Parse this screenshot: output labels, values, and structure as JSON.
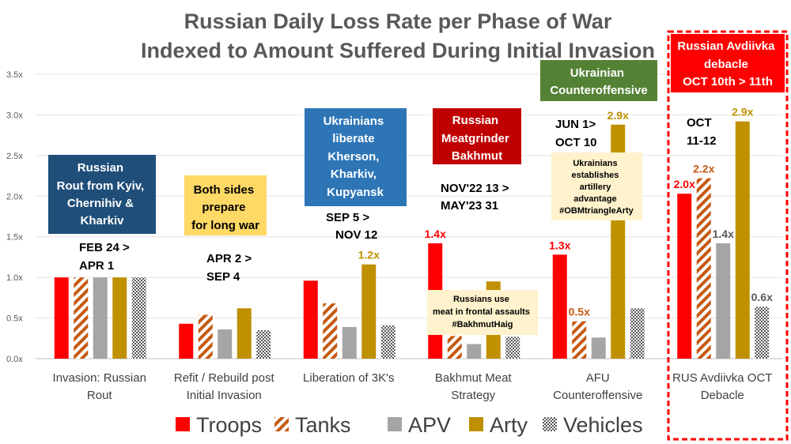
{
  "chart_data": {
    "type": "bar",
    "title": "Russian Daily Loss Rate per Phase of War",
    "subtitle": "Indexed to Amount Suffered During Initial Invasion",
    "ylim": [
      0,
      3.5
    ],
    "yticks": [
      "0.0x",
      "0.5x",
      "1.0x",
      "1.5x",
      "2.0x",
      "2.5x",
      "3.0x",
      "3.5x"
    ],
    "categories": [
      [
        "Invasion: Russian",
        "Rout"
      ],
      [
        "Refit / Rebuild post",
        "Initial Invasion"
      ],
      [
        "Liberation of 3K's"
      ],
      [
        "Bakhmut Meat",
        "Strategy"
      ],
      [
        "AFU",
        "Counteroffensive"
      ],
      [
        "RUS Avdiivka OCT",
        "Debacle"
      ]
    ],
    "series": [
      {
        "name": "Troops",
        "color": "#ff0000",
        "pattern": "solid",
        "values": [
          1.0,
          0.43,
          0.96,
          1.42,
          1.28,
          2.03
        ]
      },
      {
        "name": "Tanks",
        "color": "#c65911",
        "pattern": "diagonal",
        "values": [
          1.0,
          0.54,
          0.68,
          0.28,
          0.46,
          2.22
        ]
      },
      {
        "name": "APV",
        "color": "#a5a5a5",
        "pattern": "solid",
        "values": [
          1.0,
          0.36,
          0.39,
          0.18,
          0.26,
          1.42
        ]
      },
      {
        "name": "Arty",
        "color": "#bf9000",
        "pattern": "solid",
        "values": [
          1.0,
          0.62,
          1.16,
          0.95,
          2.88,
          2.92
        ]
      },
      {
        "name": "Vehicles",
        "color": "#595959",
        "pattern": "checker",
        "values": [
          1.0,
          0.35,
          0.41,
          0.27,
          0.62,
          0.64
        ]
      }
    ],
    "value_labels": [
      {
        "text": "1.2x",
        "group": 2,
        "series": 3,
        "color": "#bf9000"
      },
      {
        "text": "1.4x",
        "group": 3,
        "series": 0,
        "color": "#ff0000"
      },
      {
        "text": "1.3x",
        "group": 4,
        "series": 0,
        "color": "#ff0000"
      },
      {
        "text": "0.5x",
        "group": 4,
        "series": 1,
        "color": "#c65911"
      },
      {
        "text": "2.9x",
        "group": 4,
        "series": 3,
        "color": "#bf9000"
      },
      {
        "text": "2.0x",
        "group": 5,
        "series": 0,
        "color": "#ff0000"
      },
      {
        "text": "2.2x",
        "group": 5,
        "series": 1,
        "color": "#c65911"
      },
      {
        "text": "1.4x",
        "group": 5,
        "series": 2,
        "color": "#595959"
      },
      {
        "text": "2.9x",
        "group": 5,
        "series": 3,
        "color": "#bf9000"
      },
      {
        "text": "0.6x",
        "group": 5,
        "series": 4,
        "color": "#595959"
      }
    ],
    "annotations": {
      "rout_box": [
        "Russian",
        "Rout from Kyiv,",
        "Chernihiv &",
        "Kharkiv"
      ],
      "rout_dates": [
        "FEB 24 >",
        "APR 1"
      ],
      "prepare_box": [
        "Both sides",
        "prepare",
        "for long war"
      ],
      "prepare_dates": [
        "APR 2 >",
        "SEP 4"
      ],
      "liberate_box": [
        "Ukrainians",
        "liberate",
        "Kherson,",
        "Kharkiv,",
        "Kupyansk"
      ],
      "liberate_dates": [
        "SEP 5 >",
        "NOV 12"
      ],
      "meatgrinder_box": [
        "Russian",
        "Meatgrinder",
        "Bakhmut"
      ],
      "meatgrinder_dates": [
        "NOV'22 13 >",
        "MAY'23 31"
      ],
      "meat_note": [
        "Russians use",
        "meat in frontal assaults",
        "#BakhmutHaig"
      ],
      "counter_box": [
        "Ukrainian",
        "Counteroffensive"
      ],
      "counter_dates": [
        "JUN 1>",
        "OCT 10"
      ],
      "arty_note": [
        "Ukrainians",
        "establishes",
        "artillery",
        "advantage",
        "#OBMtriangleArty"
      ],
      "avdiivka_box": [
        "Russian Avdiivka",
        "debacle",
        "OCT 10th > 11th"
      ],
      "avdiivka_dates": [
        "OCT",
        "11-12"
      ]
    },
    "legend_position": "bottom"
  }
}
